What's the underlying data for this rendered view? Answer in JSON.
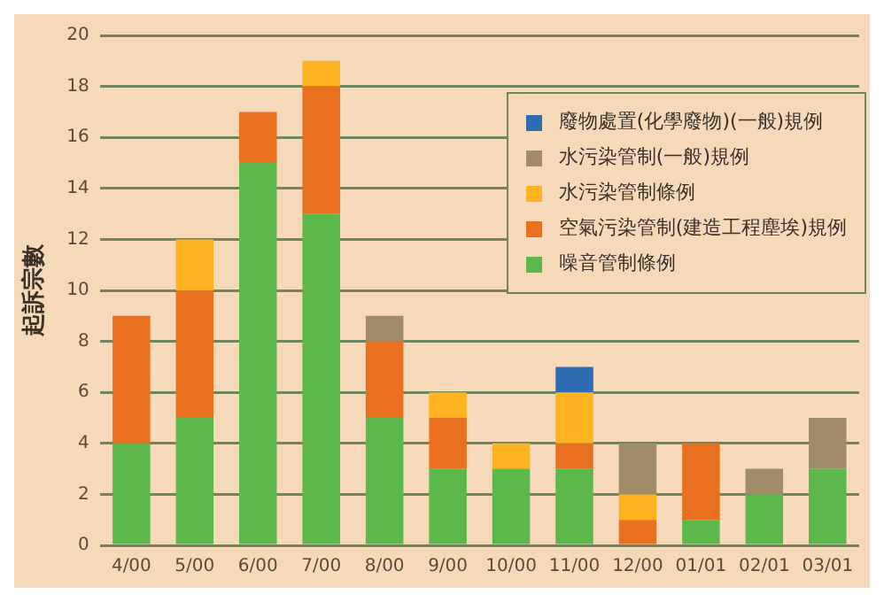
{
  "chart_data": {
    "type": "bar",
    "ylabel": "起訴宗數",
    "stacked": true,
    "categories": [
      "4/00",
      "5/00",
      "6/00",
      "7/00",
      "8/00",
      "9/00",
      "10/00",
      "11/00",
      "12/00",
      "01/01",
      "02/01",
      "03/01"
    ],
    "series": [
      {
        "name": "噪音管制條例",
        "color": "#5cb84a",
        "values": [
          4,
          5,
          15,
          13,
          5,
          3,
          3,
          3,
          0,
          1,
          2,
          3
        ]
      },
      {
        "name": "空氣污染管制(建造工程塵埃)規例",
        "color": "#e8701e",
        "values": [
          5,
          5,
          2,
          5,
          3,
          2,
          0,
          1,
          1,
          3,
          0,
          0
        ]
      },
      {
        "name": "水污染管制條例",
        "color": "#fdb320",
        "values": [
          0,
          2,
          0,
          1,
          0,
          1,
          1,
          2,
          1,
          0,
          0,
          0
        ]
      },
      {
        "name": "水污染管制(一般)規例",
        "color": "#a08c68",
        "values": [
          0,
          0,
          0,
          0,
          1,
          0,
          0,
          0,
          2,
          0,
          1,
          2
        ]
      },
      {
        "name": "廢物處置(化學廢物)(一般)規例",
        "color": "#2e6db4",
        "values": [
          0,
          0,
          0,
          0,
          0,
          0,
          0,
          1,
          0,
          0,
          0,
          0
        ]
      }
    ],
    "ylim": [
      0,
      20
    ],
    "yticks": [
      0,
      2,
      4,
      6,
      8,
      10,
      12,
      14,
      16,
      18,
      20
    ],
    "grid": "y",
    "legend": "top right"
  }
}
